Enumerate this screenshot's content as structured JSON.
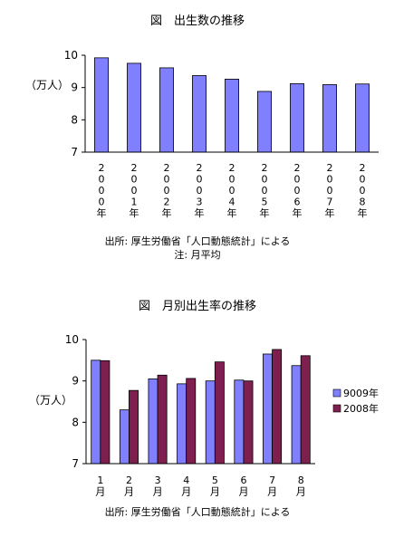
{
  "chart_data": [
    {
      "type": "bar",
      "title": "図　出生数の推移",
      "ylabel": "（万人）",
      "ylim": [
        7,
        10
      ],
      "yticks": [
        "7",
        "8",
        "9",
        "10"
      ],
      "categories": [
        "2000年",
        "2001年",
        "2002年",
        "2003年",
        "2004年",
        "2005年",
        "2006年",
        "2007年",
        "2008年"
      ],
      "category_glyphs": [
        [
          "2",
          "0",
          "0",
          "0",
          "年"
        ],
        [
          "2",
          "0",
          "0",
          "1",
          "年"
        ],
        [
          "2",
          "0",
          "0",
          "2",
          "年"
        ],
        [
          "2",
          "0",
          "0",
          "3",
          "年"
        ],
        [
          "2",
          "0",
          "0",
          "4",
          "年"
        ],
        [
          "2",
          "0",
          "0",
          "5",
          "年"
        ],
        [
          "2",
          "0",
          "0",
          "6",
          "年"
        ],
        [
          "2",
          "0",
          "0",
          "7",
          "年"
        ],
        [
          "2",
          "0",
          "0",
          "8",
          "年"
        ]
      ],
      "series": [
        {
          "values": [
            9.92,
            9.75,
            9.61,
            9.37,
            9.26,
            8.88,
            9.12,
            9.09,
            9.11
          ],
          "color": "#8080ff"
        }
      ],
      "notes": [
        "出所: 厚生労働省「人口動態統計」による",
        "注: 月平均"
      ]
    },
    {
      "type": "bar",
      "title": "図　月別出生率の推移",
      "ylabel": "（万人）",
      "ylim": [
        7,
        10
      ],
      "yticks": [
        "7",
        "8",
        "9",
        "10"
      ],
      "categories": [
        "1月",
        "2月",
        "3月",
        "4月",
        "5月",
        "6月",
        "7月",
        "8月"
      ],
      "category_glyphs": [
        [
          "1",
          "月"
        ],
        [
          "2",
          "月"
        ],
        [
          "3",
          "月"
        ],
        [
          "4",
          "月"
        ],
        [
          "5",
          "月"
        ],
        [
          "6",
          "月"
        ],
        [
          "7",
          "月"
        ],
        [
          "8",
          "月"
        ]
      ],
      "legend_position": "right",
      "series": [
        {
          "name": "9009年",
          "values": [
            9.5,
            8.3,
            9.05,
            8.93,
            9.0,
            9.02,
            9.65,
            9.37
          ],
          "color": "#8080ff"
        },
        {
          "name": "2008年",
          "values": [
            9.49,
            8.77,
            9.14,
            9.06,
            9.46,
            9.0,
            9.76,
            9.61
          ],
          "color": "#7f1f4f"
        }
      ],
      "notes": [
        "出所: 厚生労働省「人口動態統計」による"
      ]
    }
  ]
}
